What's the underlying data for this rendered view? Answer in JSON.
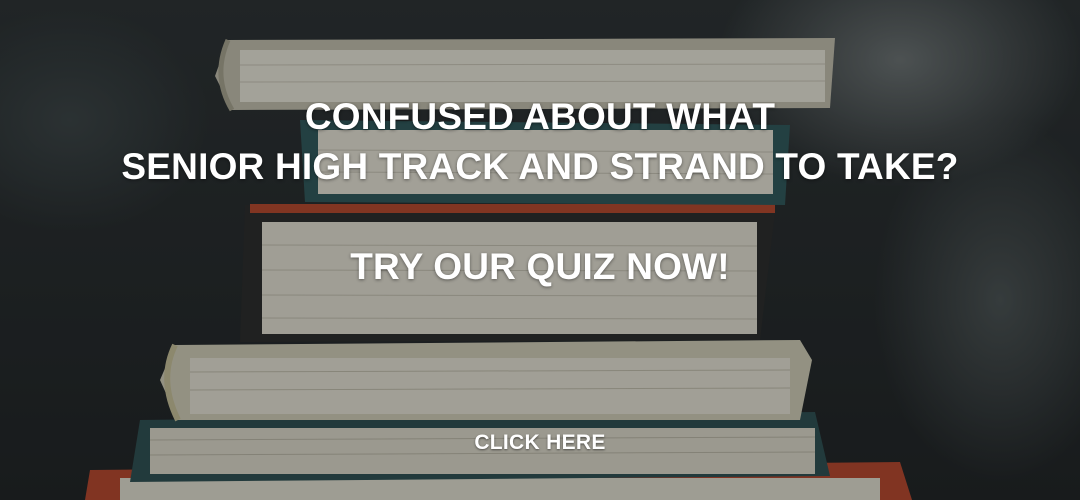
{
  "banner": {
    "headline_line1": "CONFUSED ABOUT WHAT",
    "headline_line2": "SENIOR HIGH TRACK AND STRAND TO TAKE?",
    "cta_title": "TRY OUR QUIZ NOW!",
    "button_label": "CLICK HERE"
  },
  "colors": {
    "text": "#ffffff",
    "background": "#24282a",
    "book_red": "#c2462b",
    "book_teal": "#2f5a5c",
    "pages": "#e7e3d6"
  },
  "background_image": {
    "icon": "stack-of-books-photo"
  }
}
